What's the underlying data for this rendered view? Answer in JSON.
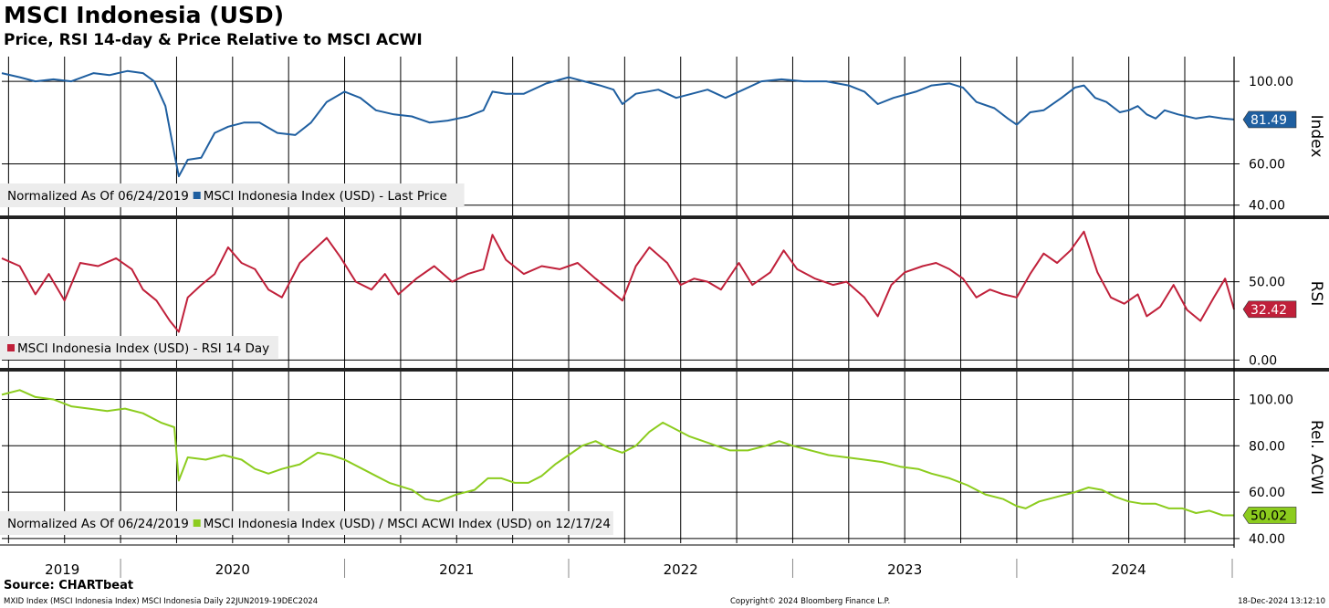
{
  "header": {
    "title": "MSCI Indonesia (USD)",
    "subtitle": "Price, RSI 14-day & Price Relative to MSCI ACWI"
  },
  "footer": {
    "source": "Source: CHARTbeat",
    "left": "MXID Index (MSCI Indonesia Index) MSCI Indonesia  Daily 22JUN2019-19DEC2024",
    "center": "Copyright© 2024 Bloomberg Finance L.P.",
    "right": "18-Dec-2024 13:12:10"
  },
  "chart_data": [
    {
      "type": "line",
      "panel": "Index",
      "axis_label": "Index",
      "ylim": [
        35,
        112
      ],
      "yticks": [
        "100.00",
        "60.00",
        "40.00"
      ],
      "ytick_values": [
        100,
        60,
        40
      ],
      "legend_prefix": "Normalized As Of 06/24/2019",
      "legend_label": "MSCI Indonesia Index (USD) - Last Price",
      "color": "#1f5fa0",
      "last_value_label": "81.49",
      "last_value": 81.49,
      "x_range": [
        2019.47,
        2024.97
      ],
      "points": [
        [
          2019.47,
          104
        ],
        [
          2019.55,
          102
        ],
        [
          2019.62,
          100
        ],
        [
          2019.7,
          101
        ],
        [
          2019.78,
          100
        ],
        [
          2019.88,
          104
        ],
        [
          2019.95,
          103
        ],
        [
          2020.03,
          105
        ],
        [
          2020.1,
          104
        ],
        [
          2020.15,
          100
        ],
        [
          2020.2,
          88
        ],
        [
          2020.24,
          65
        ],
        [
          2020.26,
          54
        ],
        [
          2020.3,
          62
        ],
        [
          2020.36,
          63
        ],
        [
          2020.42,
          75
        ],
        [
          2020.48,
          78
        ],
        [
          2020.55,
          80
        ],
        [
          2020.62,
          80
        ],
        [
          2020.7,
          75
        ],
        [
          2020.78,
          74
        ],
        [
          2020.85,
          80
        ],
        [
          2020.92,
          90
        ],
        [
          2021.0,
          95
        ],
        [
          2021.07,
          92
        ],
        [
          2021.14,
          86
        ],
        [
          2021.22,
          84
        ],
        [
          2021.3,
          83
        ],
        [
          2021.38,
          80
        ],
        [
          2021.46,
          81
        ],
        [
          2021.55,
          83
        ],
        [
          2021.62,
          86
        ],
        [
          2021.66,
          95
        ],
        [
          2021.72,
          94
        ],
        [
          2021.8,
          94
        ],
        [
          2021.9,
          99
        ],
        [
          2022.0,
          102
        ],
        [
          2022.07,
          100
        ],
        [
          2022.14,
          98
        ],
        [
          2022.2,
          96
        ],
        [
          2022.24,
          89
        ],
        [
          2022.3,
          94
        ],
        [
          2022.4,
          96
        ],
        [
          2022.48,
          92
        ],
        [
          2022.55,
          94
        ],
        [
          2022.62,
          96
        ],
        [
          2022.7,
          92
        ],
        [
          2022.78,
          96
        ],
        [
          2022.86,
          100
        ],
        [
          2022.95,
          101
        ],
        [
          2023.05,
          100
        ],
        [
          2023.15,
          100
        ],
        [
          2023.25,
          98
        ],
        [
          2023.32,
          95
        ],
        [
          2023.38,
          89
        ],
        [
          2023.45,
          92
        ],
        [
          2023.55,
          95
        ],
        [
          2023.62,
          98
        ],
        [
          2023.7,
          99
        ],
        [
          2023.76,
          97
        ],
        [
          2023.82,
          90
        ],
        [
          2023.9,
          87
        ],
        [
          2023.96,
          82
        ],
        [
          2024.0,
          79
        ],
        [
          2024.06,
          85
        ],
        [
          2024.12,
          86
        ],
        [
          2024.2,
          92
        ],
        [
          2024.26,
          97
        ],
        [
          2024.3,
          98
        ],
        [
          2024.35,
          92
        ],
        [
          2024.4,
          90
        ],
        [
          2024.46,
          85
        ],
        [
          2024.5,
          86
        ],
        [
          2024.54,
          88
        ],
        [
          2024.58,
          84
        ],
        [
          2024.62,
          82
        ],
        [
          2024.66,
          86
        ],
        [
          2024.72,
          84
        ],
        [
          2024.8,
          82
        ],
        [
          2024.86,
          83
        ],
        [
          2024.92,
          82
        ],
        [
          2024.97,
          81.49
        ]
      ]
    },
    {
      "type": "line",
      "panel": "RSI",
      "axis_label": "RSI",
      "ylim": [
        -5,
        90
      ],
      "yticks": [
        "50.00",
        "0.00"
      ],
      "ytick_values": [
        50,
        0
      ],
      "legend_prefix": "",
      "legend_label": "MSCI Indonesia Index (USD) - RSI 14 Day",
      "color": "#c0203a",
      "last_value_label": "32.42",
      "last_value": 32.42,
      "x_range": [
        2019.47,
        2024.97
      ],
      "points": [
        [
          2019.47,
          65
        ],
        [
          2019.55,
          60
        ],
        [
          2019.62,
          42
        ],
        [
          2019.68,
          55
        ],
        [
          2019.75,
          38
        ],
        [
          2019.82,
          62
        ],
        [
          2019.9,
          60
        ],
        [
          2019.98,
          65
        ],
        [
          2020.05,
          58
        ],
        [
          2020.1,
          45
        ],
        [
          2020.16,
          38
        ],
        [
          2020.22,
          25
        ],
        [
          2020.26,
          18
        ],
        [
          2020.3,
          40
        ],
        [
          2020.36,
          48
        ],
        [
          2020.42,
          55
        ],
        [
          2020.48,
          72
        ],
        [
          2020.54,
          62
        ],
        [
          2020.6,
          58
        ],
        [
          2020.66,
          45
        ],
        [
          2020.72,
          40
        ],
        [
          2020.8,
          62
        ],
        [
          2020.86,
          70
        ],
        [
          2020.92,
          78
        ],
        [
          2020.98,
          66
        ],
        [
          2021.05,
          50
        ],
        [
          2021.12,
          45
        ],
        [
          2021.18,
          55
        ],
        [
          2021.24,
          42
        ],
        [
          2021.32,
          52
        ],
        [
          2021.4,
          60
        ],
        [
          2021.48,
          50
        ],
        [
          2021.55,
          55
        ],
        [
          2021.62,
          58
        ],
        [
          2021.66,
          80
        ],
        [
          2021.72,
          64
        ],
        [
          2021.8,
          55
        ],
        [
          2021.88,
          60
        ],
        [
          2021.96,
          58
        ],
        [
          2022.04,
          62
        ],
        [
          2022.12,
          52
        ],
        [
          2022.18,
          45
        ],
        [
          2022.24,
          38
        ],
        [
          2022.3,
          60
        ],
        [
          2022.36,
          72
        ],
        [
          2022.44,
          62
        ],
        [
          2022.5,
          48
        ],
        [
          2022.56,
          52
        ],
        [
          2022.62,
          50
        ],
        [
          2022.68,
          45
        ],
        [
          2022.76,
          62
        ],
        [
          2022.82,
          48
        ],
        [
          2022.9,
          56
        ],
        [
          2022.96,
          70
        ],
        [
          2023.02,
          58
        ],
        [
          2023.1,
          52
        ],
        [
          2023.18,
          48
        ],
        [
          2023.24,
          50
        ],
        [
          2023.32,
          40
        ],
        [
          2023.38,
          28
        ],
        [
          2023.44,
          48
        ],
        [
          2023.5,
          56
        ],
        [
          2023.58,
          60
        ],
        [
          2023.64,
          62
        ],
        [
          2023.7,
          58
        ],
        [
          2023.76,
          52
        ],
        [
          2023.82,
          40
        ],
        [
          2023.88,
          45
        ],
        [
          2023.94,
          42
        ],
        [
          2024.0,
          40
        ],
        [
          2024.06,
          55
        ],
        [
          2024.12,
          68
        ],
        [
          2024.18,
          62
        ],
        [
          2024.24,
          70
        ],
        [
          2024.3,
          82
        ],
        [
          2024.36,
          56
        ],
        [
          2024.42,
          40
        ],
        [
          2024.48,
          36
        ],
        [
          2024.54,
          42
        ],
        [
          2024.58,
          28
        ],
        [
          2024.64,
          34
        ],
        [
          2024.7,
          48
        ],
        [
          2024.76,
          32
        ],
        [
          2024.82,
          25
        ],
        [
          2024.88,
          40
        ],
        [
          2024.93,
          52
        ],
        [
          2024.97,
          32.42
        ]
      ]
    },
    {
      "type": "line",
      "panel": "Rel. ACWI",
      "axis_label": "Rel. ACWI",
      "ylim": [
        38,
        112
      ],
      "yticks": [
        "100.00",
        "80.00",
        "60.00",
        "40.00"
      ],
      "ytick_values": [
        100,
        80,
        60,
        40
      ],
      "legend_prefix": "Normalized As Of 06/24/2019",
      "legend_label": "MSCI Indonesia Index (USD) / MSCI ACWI Index (USD) on 12/17/24",
      "color": "#8ccc1e",
      "last_value_label": "50.02",
      "last_value": 50.02,
      "x_range": [
        2019.47,
        2024.97
      ],
      "points": [
        [
          2019.47,
          102
        ],
        [
          2019.55,
          104
        ],
        [
          2019.62,
          101
        ],
        [
          2019.7,
          100
        ],
        [
          2019.78,
          97
        ],
        [
          2019.86,
          96
        ],
        [
          2019.94,
          95
        ],
        [
          2020.02,
          96
        ],
        [
          2020.1,
          94
        ],
        [
          2020.18,
          90
        ],
        [
          2020.24,
          88
        ],
        [
          2020.26,
          65
        ],
        [
          2020.3,
          75
        ],
        [
          2020.38,
          74
        ],
        [
          2020.46,
          76
        ],
        [
          2020.54,
          74
        ],
        [
          2020.6,
          70
        ],
        [
          2020.66,
          68
        ],
        [
          2020.72,
          70
        ],
        [
          2020.8,
          72
        ],
        [
          2020.88,
          77
        ],
        [
          2020.94,
          76
        ],
        [
          2021.0,
          74
        ],
        [
          2021.08,
          70
        ],
        [
          2021.14,
          67
        ],
        [
          2021.2,
          64
        ],
        [
          2021.3,
          61
        ],
        [
          2021.36,
          57
        ],
        [
          2021.42,
          56
        ],
        [
          2021.5,
          59
        ],
        [
          2021.58,
          61
        ],
        [
          2021.64,
          66
        ],
        [
          2021.7,
          66
        ],
        [
          2021.76,
          64
        ],
        [
          2021.82,
          64
        ],
        [
          2021.88,
          67
        ],
        [
          2021.94,
          72
        ],
        [
          2022.0,
          76
        ],
        [
          2022.06,
          80
        ],
        [
          2022.12,
          82
        ],
        [
          2022.18,
          79
        ],
        [
          2022.24,
          77
        ],
        [
          2022.3,
          80
        ],
        [
          2022.36,
          86
        ],
        [
          2022.42,
          90
        ],
        [
          2022.48,
          87
        ],
        [
          2022.54,
          84
        ],
        [
          2022.6,
          82
        ],
        [
          2022.66,
          80
        ],
        [
          2022.72,
          78
        ],
        [
          2022.8,
          78
        ],
        [
          2022.88,
          80
        ],
        [
          2022.94,
          82
        ],
        [
          2023.0,
          80
        ],
        [
          2023.08,
          78
        ],
        [
          2023.16,
          76
        ],
        [
          2023.24,
          75
        ],
        [
          2023.32,
          74
        ],
        [
          2023.4,
          73
        ],
        [
          2023.48,
          71
        ],
        [
          2023.56,
          70
        ],
        [
          2023.62,
          68
        ],
        [
          2023.7,
          66
        ],
        [
          2023.78,
          63
        ],
        [
          2023.86,
          59
        ],
        [
          2023.94,
          57
        ],
        [
          2024.0,
          54
        ],
        [
          2024.04,
          53
        ],
        [
          2024.1,
          56
        ],
        [
          2024.18,
          58
        ],
        [
          2024.26,
          60
        ],
        [
          2024.32,
          62
        ],
        [
          2024.38,
          61
        ],
        [
          2024.44,
          58
        ],
        [
          2024.5,
          56
        ],
        [
          2024.56,
          55
        ],
        [
          2024.62,
          55
        ],
        [
          2024.68,
          53
        ],
        [
          2024.74,
          53
        ],
        [
          2024.8,
          51
        ],
        [
          2024.86,
          52
        ],
        [
          2024.92,
          50
        ],
        [
          2024.97,
          50.02
        ]
      ]
    }
  ],
  "x_axis": {
    "years": [
      "2019",
      "2020",
      "2021",
      "2022",
      "2023",
      "2024"
    ],
    "year_centers": [
      2019.74,
      2020.5,
      2021.5,
      2022.5,
      2023.5,
      2024.5
    ],
    "range": [
      2019.47,
      2024.97
    ]
  },
  "colors": {
    "index": "#1f5fa0",
    "rsi": "#c0203a",
    "rel": "#8ccc1e",
    "legend_bg": "#ececec"
  }
}
